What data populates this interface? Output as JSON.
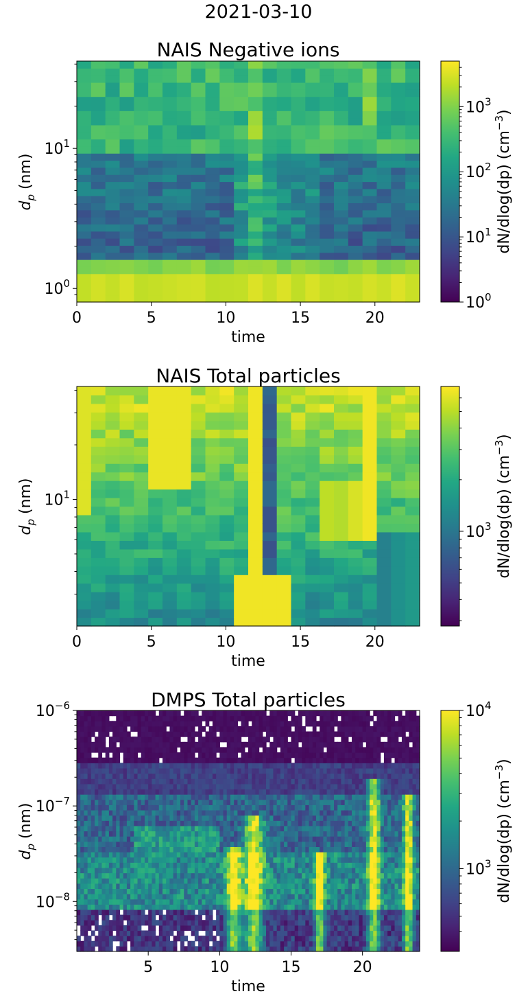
{
  "figure": {
    "suptitle": "2021-03-10"
  },
  "chart_data": [
    {
      "type": "heatmap",
      "title": "NAIS Negative ions",
      "xlabel": "time",
      "ylabel": "d_p (nm)",
      "ylabel_main": "d",
      "ylabel_sub": "p",
      "ylabel_rest": " (nm)",
      "x_range": [
        0,
        23
      ],
      "y_range": [
        0.8,
        42
      ],
      "y_scale": "log",
      "x_ticks": [
        0,
        5,
        10,
        15,
        20
      ],
      "x_tick_labels": [
        "0",
        "5",
        "10",
        "15",
        "20"
      ],
      "y_ticks": [
        {
          "value": 1,
          "base": "10",
          "exp": "0"
        },
        {
          "value": 10,
          "base": "10",
          "exp": "1"
        }
      ],
      "colorbar": {
        "label_main": "dN/dlog(dp) (cm",
        "label_sup": "−3",
        "label_end": ")",
        "scale": "log",
        "range": [
          1,
          5000
        ],
        "ticks": [
          {
            "value": 1,
            "base": "10",
            "exp": "0"
          },
          {
            "value": 10,
            "base": "10",
            "exp": "1"
          },
          {
            "value": 100,
            "base": "10",
            "exp": "2"
          },
          {
            "value": 1000,
            "base": "10",
            "exp": "3"
          }
        ]
      },
      "colormap": "viridis",
      "description_values": "log10 concentration per time-bin (24 bins, 0-23 h) for diameter bins rising from 0.8 nm to 42 nm; high at <1.5 nm, low around 2-8 nm, moderate above 10 nm"
    },
    {
      "type": "heatmap",
      "title": "NAIS Total particles",
      "xlabel": "time",
      "ylabel": "d_p (nm)",
      "ylabel_main": "d",
      "ylabel_sub": "p",
      "ylabel_rest": " (nm)",
      "x_range": [
        0,
        23
      ],
      "y_range": [
        2.0,
        42
      ],
      "y_scale": "log",
      "x_ticks": [
        0,
        5,
        10,
        15,
        20
      ],
      "x_tick_labels": [
        "0",
        "5",
        "10",
        "15",
        "20"
      ],
      "y_ticks": [
        {
          "value": 10,
          "base": "10",
          "exp": "1"
        }
      ],
      "colorbar": {
        "label_main": "dN/dlog(dp) (cm",
        "label_sup": "−3",
        "label_end": ")",
        "scale": "log",
        "range": [
          280,
          7000
        ],
        "ticks": [
          {
            "value": 1000,
            "base": "10",
            "exp": "3"
          }
        ]
      },
      "colormap": "viridis"
    },
    {
      "type": "heatmap",
      "title": "DMPS Total particles",
      "xlabel": "time",
      "ylabel": "d_p (nm)",
      "ylabel_main": "d",
      "ylabel_sub": "p",
      "ylabel_rest": " (nm)",
      "x_range": [
        0,
        24
      ],
      "y_range": [
        3e-09,
        1e-06
      ],
      "y_scale": "log",
      "x_ticks": [
        5,
        10,
        15,
        20
      ],
      "x_tick_labels": [
        "5",
        "10",
        "15",
        "20"
      ],
      "y_ticks": [
        {
          "value": 1e-08,
          "base": "10",
          "exp": "−8"
        },
        {
          "value": 1e-07,
          "base": "10",
          "exp": "−7"
        },
        {
          "value": 1e-06,
          "base": "10",
          "exp": "−6"
        }
      ],
      "colorbar": {
        "label_main": "dN/dlog(dp) (cm",
        "label_sup": "−3",
        "label_end": ")",
        "scale": "log",
        "range": [
          300,
          10000
        ],
        "ticks": [
          {
            "value": 1000,
            "base": "10",
            "exp": "3"
          },
          {
            "value": 10000,
            "base": "10",
            "exp": "4"
          }
        ]
      },
      "colormap": "viridis"
    }
  ]
}
